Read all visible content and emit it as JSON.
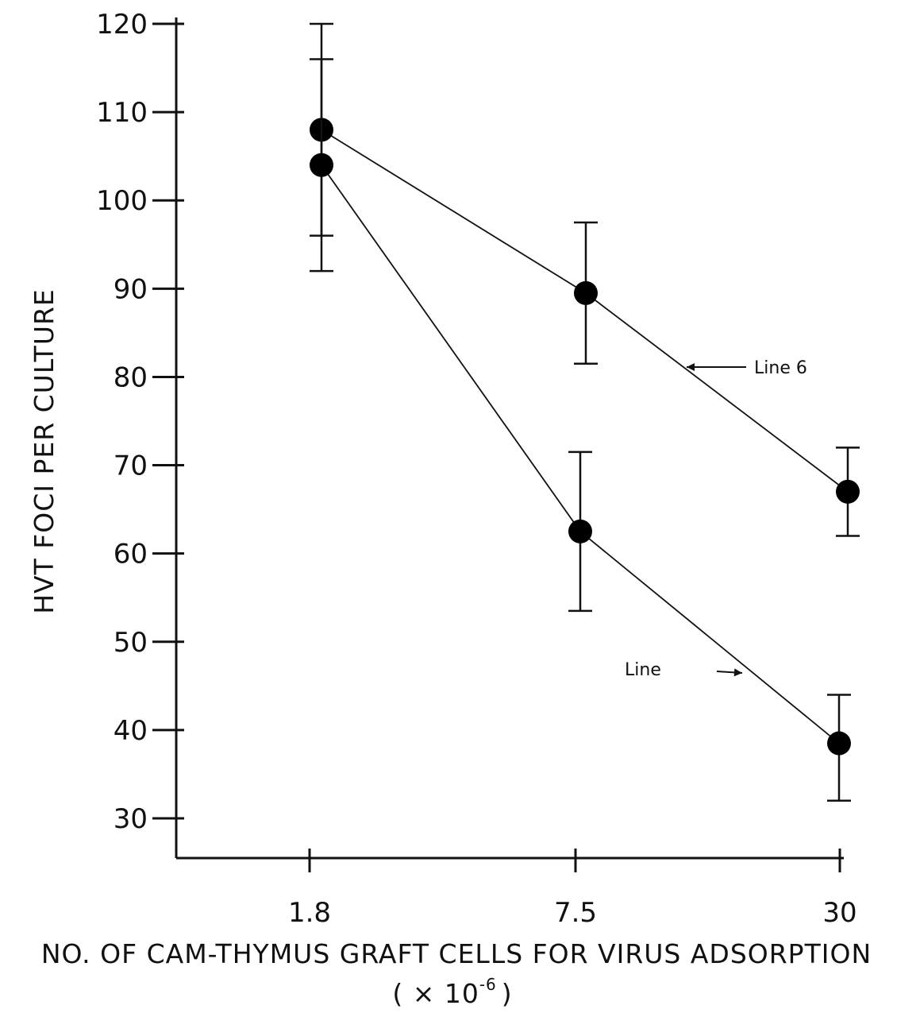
{
  "chart_data": {
    "type": "line",
    "title": "",
    "xlabel": "NO. OF CAM-THYMUS GRAFT CELLS FOR VIRUS ADSORPTION",
    "xlabel_unit_base": "( × 10",
    "xlabel_unit_exp": "-6",
    "xlabel_unit_close": ")",
    "ylabel": "HVT FOCI PER CULTURE",
    "categories": [
      "1.8",
      "7.5",
      "30"
    ],
    "y_ticks": [
      30,
      40,
      50,
      60,
      70,
      80,
      90,
      100,
      110,
      120
    ],
    "ylim": [
      25,
      122
    ],
    "grid": false,
    "series": [
      {
        "name": "Line 6",
        "values": [
          108,
          89.5,
          67
        ],
        "error_low": [
          92,
          81.5,
          62
        ],
        "error_high": [
          120,
          97.5,
          72
        ]
      },
      {
        "name": "Line",
        "values": [
          104,
          62.5,
          38.5
        ],
        "error_low": [
          96,
          53.5,
          32
        ],
        "error_high": [
          116,
          71.5,
          44
        ]
      }
    ],
    "colors": {
      "ink": "#111111",
      "background": "#ffffff"
    }
  }
}
